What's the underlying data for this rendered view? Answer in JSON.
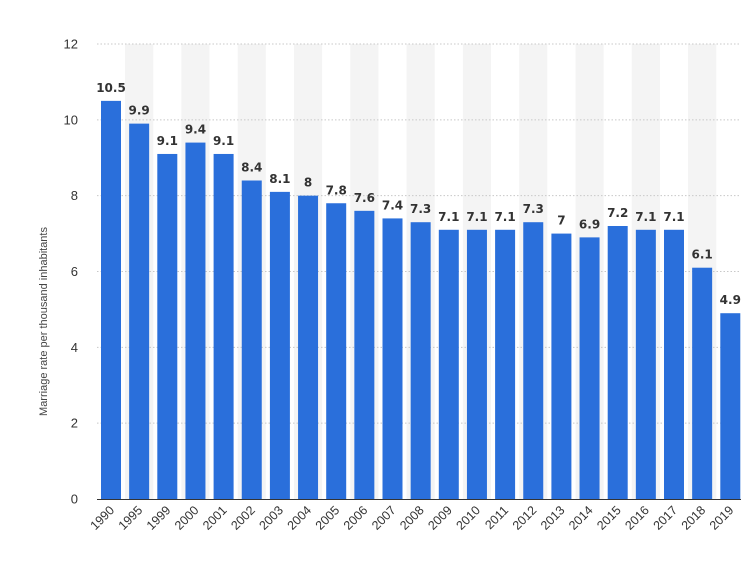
{
  "chart_data": {
    "type": "bar",
    "categories": [
      "1990",
      "1995",
      "1999",
      "2000",
      "2001",
      "2002",
      "2003",
      "2004",
      "2005",
      "2006",
      "2007",
      "2008",
      "2009",
      "2010",
      "2011",
      "2012",
      "2013",
      "2014",
      "2015",
      "2016",
      "2017",
      "2018",
      "2019"
    ],
    "values": [
      10.5,
      9.9,
      9.1,
      9.4,
      9.1,
      8.4,
      8.1,
      8,
      7.8,
      7.6,
      7.4,
      7.3,
      7.1,
      7.1,
      7.1,
      7.3,
      7,
      6.9,
      7.2,
      7.1,
      7.1,
      6.1,
      4.9
    ],
    "value_labels": [
      "10.5",
      "9.9",
      "9.1",
      "9.4",
      "9.1",
      "8.4",
      "8.1",
      "8",
      "7.8",
      "7.6",
      "7.4",
      "7.3",
      "7.1",
      "7.1",
      "7.1",
      "7.3",
      "7",
      "6.9",
      "7.2",
      "7.1",
      "7.1",
      "6.1",
      "4.9"
    ],
    "title": "",
    "xlabel": "",
    "ylabel": "Marriage rate per thousand inhabitants",
    "ylim": [
      0,
      12
    ],
    "yticks": [
      "0",
      "2",
      "4",
      "6",
      "8",
      "10",
      "12"
    ],
    "grid": true,
    "legend": "none",
    "bar_color": "#2a6fdb",
    "band_color": "#f4f4f4"
  }
}
